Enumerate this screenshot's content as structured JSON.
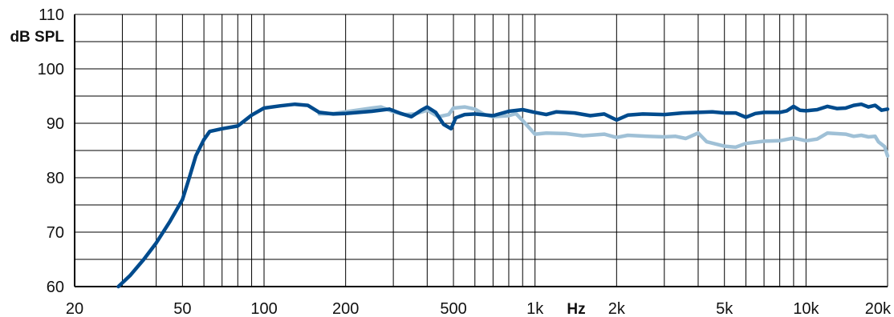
{
  "chart_data": {
    "type": "line",
    "title": "",
    "xlabel": "Hz",
    "ylabel": "dB SPL",
    "x_scale": "log",
    "xlim": [
      20,
      20000
    ],
    "ylim": [
      60,
      110
    ],
    "grid": true,
    "x_ticks": [
      20,
      50,
      100,
      200,
      500,
      1000,
      2000,
      5000,
      10000,
      20000
    ],
    "x_tick_labels": [
      "20",
      "50",
      "100",
      "200",
      "500",
      "1k",
      "2k",
      "5k",
      "10k",
      "20k"
    ],
    "y_ticks": [
      60,
      70,
      80,
      90,
      100,
      110
    ],
    "y_tick_labels": [
      "60",
      "70",
      "80",
      "90",
      "100",
      "110"
    ],
    "colors": {
      "dark": "#004b8d",
      "light": "#9fc0d6",
      "grid": "#000000"
    },
    "series": [
      {
        "color": "#004b8d",
        "points": [
          [
            29,
            60
          ],
          [
            32,
            62
          ],
          [
            36,
            65
          ],
          [
            40,
            68
          ],
          [
            45,
            72
          ],
          [
            50,
            76
          ],
          [
            53,
            80
          ],
          [
            56,
            84
          ],
          [
            60,
            87
          ],
          [
            63,
            88.5
          ],
          [
            70,
            89
          ],
          [
            80,
            89.5
          ],
          [
            90,
            91.5
          ],
          [
            100,
            92.8
          ],
          [
            115,
            93.2
          ],
          [
            130,
            93.5
          ],
          [
            145,
            93.3
          ],
          [
            160,
            92
          ],
          [
            180,
            91.7
          ],
          [
            200,
            91.8
          ],
          [
            250,
            92.2
          ],
          [
            290,
            92.6
          ],
          [
            320,
            91.8
          ],
          [
            350,
            91.2
          ],
          [
            380,
            92.4
          ],
          [
            400,
            93
          ],
          [
            430,
            92
          ],
          [
            460,
            89.8
          ],
          [
            490,
            89
          ],
          [
            510,
            91
          ],
          [
            550,
            91.6
          ],
          [
            600,
            91.7
          ],
          [
            700,
            91.4
          ],
          [
            800,
            92.2
          ],
          [
            900,
            92.5
          ],
          [
            1000,
            92
          ],
          [
            1100,
            91.6
          ],
          [
            1200,
            92.1
          ],
          [
            1400,
            91.9
          ],
          [
            1600,
            91.4
          ],
          [
            1800,
            91.7
          ],
          [
            2000,
            90.6
          ],
          [
            2200,
            91.5
          ],
          [
            2500,
            91.7
          ],
          [
            3000,
            91.6
          ],
          [
            3500,
            91.9
          ],
          [
            4000,
            92
          ],
          [
            4500,
            92.1
          ],
          [
            5000,
            91.9
          ],
          [
            5500,
            91.9
          ],
          [
            6000,
            91.1
          ],
          [
            6500,
            91.8
          ],
          [
            7000,
            92
          ],
          [
            8000,
            92
          ],
          [
            8500,
            92.3
          ],
          [
            9000,
            93.1
          ],
          [
            9500,
            92.4
          ],
          [
            10000,
            92.3
          ],
          [
            11000,
            92.5
          ],
          [
            12000,
            93.1
          ],
          [
            13000,
            92.7
          ],
          [
            14000,
            92.8
          ],
          [
            15000,
            93.3
          ],
          [
            16000,
            93.5
          ],
          [
            17000,
            93
          ],
          [
            18000,
            93.3
          ],
          [
            19000,
            92.4
          ],
          [
            20000,
            92.6
          ]
        ]
      },
      {
        "color": "#9fc0d6",
        "points": [
          [
            160,
            91.7
          ],
          [
            180,
            91.8
          ],
          [
            200,
            92.1
          ],
          [
            250,
            92.8
          ],
          [
            270,
            93
          ],
          [
            300,
            92.1
          ],
          [
            330,
            91.6
          ],
          [
            360,
            91.7
          ],
          [
            400,
            92.4
          ],
          [
            440,
            91.2
          ],
          [
            480,
            91.6
          ],
          [
            500,
            92.8
          ],
          [
            550,
            93
          ],
          [
            600,
            92.6
          ],
          [
            650,
            91.6
          ],
          [
            700,
            91.2
          ],
          [
            800,
            91.4
          ],
          [
            850,
            91.8
          ],
          [
            900,
            90.5
          ],
          [
            1000,
            88
          ],
          [
            1100,
            88.2
          ],
          [
            1300,
            88.1
          ],
          [
            1500,
            87.7
          ],
          [
            1800,
            88
          ],
          [
            2000,
            87.4
          ],
          [
            2200,
            87.8
          ],
          [
            2600,
            87.6
          ],
          [
            3000,
            87.5
          ],
          [
            3300,
            87.6
          ],
          [
            3600,
            87.2
          ],
          [
            4000,
            88.2
          ],
          [
            4300,
            86.6
          ],
          [
            5000,
            85.8
          ],
          [
            5500,
            85.6
          ],
          [
            6000,
            86.3
          ],
          [
            7000,
            86.7
          ],
          [
            8000,
            86.8
          ],
          [
            9000,
            87.3
          ],
          [
            10000,
            86.8
          ],
          [
            11000,
            87.1
          ],
          [
            12000,
            88.2
          ],
          [
            14000,
            88
          ],
          [
            15000,
            87.6
          ],
          [
            16000,
            87.8
          ],
          [
            17000,
            87.5
          ],
          [
            18000,
            87.6
          ],
          [
            18500,
            86.6
          ],
          [
            19500,
            85.7
          ],
          [
            20000,
            84
          ]
        ]
      }
    ]
  }
}
